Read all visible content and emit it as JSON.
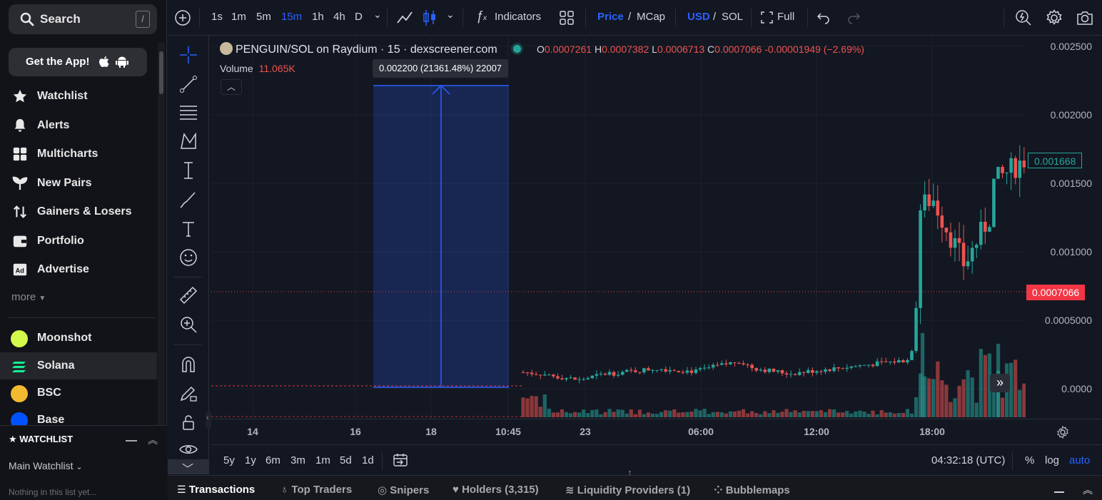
{
  "sidebar": {
    "search_label": "Search",
    "search_key": "/",
    "get_app": "Get the App!",
    "nav": [
      {
        "label": "Watchlist",
        "icon": "star-icon"
      },
      {
        "label": "Alerts",
        "icon": "bell-icon"
      },
      {
        "label": "Multicharts",
        "icon": "grid-icon"
      },
      {
        "label": "New Pairs",
        "icon": "sprout-icon"
      },
      {
        "label": "Gainers & Losers",
        "icon": "arrows-icon"
      },
      {
        "label": "Portfolio",
        "icon": "wallet-icon"
      },
      {
        "label": "Advertise",
        "icon": "ad-icon"
      }
    ],
    "more": "more",
    "chains": [
      {
        "label": "Moonshot",
        "icon": "moonshot-icon",
        "color": "#d4f94a"
      },
      {
        "label": "Solana",
        "icon": "solana-icon",
        "color": "#9945ff"
      },
      {
        "label": "BSC",
        "icon": "bsc-icon",
        "color": "#f3ba2f"
      },
      {
        "label": "Base",
        "icon": "base-icon",
        "color": "#0052ff"
      }
    ],
    "watchlist_header": "WATCHLIST",
    "watchlist_main": "Main Watchlist",
    "watchlist_empty": "Nothing in this list yet..."
  },
  "toolbar": {
    "intervals": [
      "1s",
      "1m",
      "5m",
      "15m",
      "1h",
      "4h",
      "D"
    ],
    "active_interval": "15m",
    "indicators": "Indicators",
    "price": "Price",
    "mcap": "MCap",
    "usd": "USD",
    "sol": "SOL",
    "full": "Full",
    "slash": "/"
  },
  "chart": {
    "title": "PENGUIN/SOL on Raydium · 15 · dexscreener.com",
    "ohlc": {
      "o_label": "O",
      "o": "0.0007261",
      "h_label": "H",
      "h": "0.0007382",
      "l_label": "L",
      "l": "0.0006713",
      "c_label": "C",
      "c": "0.0007066",
      "change": "-0.00001949 (−2.69%)"
    },
    "volume_label": "Volume",
    "volume_value": "11.065K",
    "measure_label": "0.002200 (21361.48%) 22007",
    "price_levels": [
      "0.002500",
      "0.002000",
      "0.001500",
      "0.001000",
      "0.0005000",
      "0.0000"
    ],
    "current_price_tag": "0.001668",
    "last_price_tag": "0.0007066",
    "time_labels": [
      "14",
      "16",
      "18",
      "10:45",
      "23",
      "06:00",
      "12:00",
      "18:00"
    ],
    "up_color": "#26a69a",
    "down_color": "#ef5350"
  },
  "range_bar": {
    "ranges": [
      "5y",
      "1y",
      "6m",
      "3m",
      "1m",
      "5d",
      "1d"
    ],
    "clock": "04:32:18 (UTC)",
    "percent": "%",
    "log": "log",
    "auto": "auto"
  },
  "tabs": [
    {
      "label": "Transactions",
      "icon": "list-icon"
    },
    {
      "label": "Top Traders",
      "icon": "medal-icon"
    },
    {
      "label": "Snipers",
      "icon": "target-icon"
    },
    {
      "label": "Holders (3,315)",
      "icon": "heart-icon"
    },
    {
      "label": "Liquidity Providers (1)",
      "icon": "water-icon"
    },
    {
      "label": "Bubblemaps",
      "icon": "bubble-icon"
    }
  ]
}
